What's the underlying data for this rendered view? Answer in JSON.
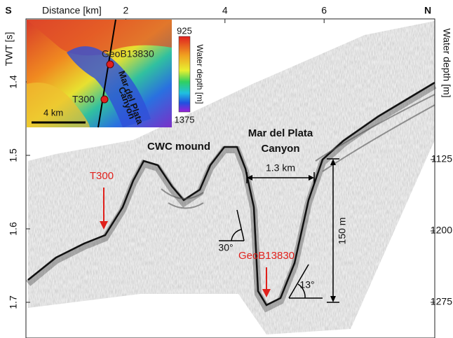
{
  "axes": {
    "south": "S",
    "north": "N",
    "top_label": "Distance [km]",
    "top_ticks": [
      2,
      4,
      6
    ],
    "left_label": "TWT [s]",
    "left_ticks": [
      1.4,
      1.5,
      1.6,
      1.7
    ],
    "right_label": "Water depth [m]",
    "right_ticks": [
      1125,
      1200,
      1275
    ]
  },
  "inset": {
    "site_1": "GeoB13830",
    "site_2": "T300",
    "canyon_line_1": "Mar del Plata",
    "canyon_line_2": "Canyon",
    "scale": "4 km",
    "colorbar_label": "Water depth [m]",
    "colorbar_top": "925",
    "colorbar_bottom": "1375"
  },
  "annotations": {
    "mound": "CWC mound",
    "canyon_line_1": "Mar del Plata",
    "canyon_line_2": "Canyon",
    "width": "1.3 km",
    "height": "150 m",
    "site_1": "T300",
    "site_2": "GeoB13830",
    "angle_1": "30°",
    "angle_2": "13°"
  }
}
